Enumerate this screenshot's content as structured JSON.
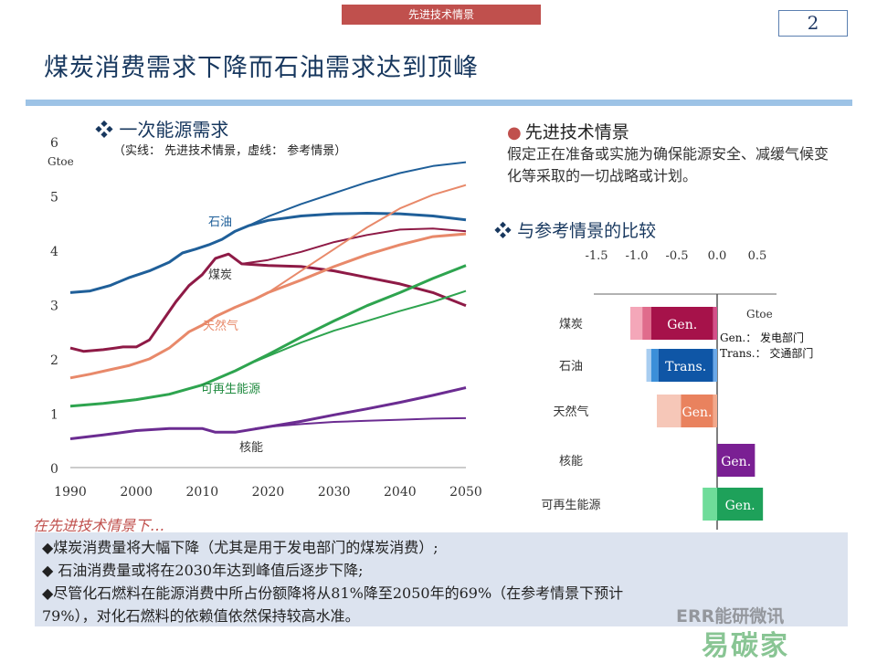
{
  "header": {
    "tag": "先进技术情景",
    "page_number": "2"
  },
  "title": "煤炭消费需求下降而石油需求达到顶峰",
  "left_panel": {
    "heading": "一次能源需求",
    "subtitle": "（实线： 先进技术情景，虚线： 参考情景）"
  },
  "right_panel": {
    "heading": "先进技术情景",
    "description": "假定正在准备或实施为确保能源安全、减缓气候变化等采取的一切战略或计划。",
    "comparison_heading": "与参考情景的比较",
    "legend_gen": "Gen.：  发电部门",
    "legend_trans": "Trans.：  交通部门"
  },
  "footer": {
    "lead": "在先进技术情景下…",
    "bullets": [
      "◆煤炭消费量将大幅下降（尤其是用于发电部门的煤炭消费）;",
      "◆ 石油消费量或将在2030年达到峰值后逐步下降;",
      "◆尽管化石燃料在能源消费中所占份额降将从81%降至2050年的69%（在参考情景下预计",
      "   79%），对化石燃料的依赖值依然保持较高水准。"
    ]
  },
  "watermark": {
    "line1": "ERR能研微讯",
    "line2": "易碳家"
  },
  "colors": {
    "oil": "#1f5f99",
    "coal": "#8e1a46",
    "gas": "#e8896a",
    "renew": "#2ea44f",
    "nuclear": "#6b2c91",
    "title": "#17375e",
    "accent": "#c0504d"
  },
  "chart_data": [
    {
      "type": "line",
      "ylabel": "Gtoe",
      "ylim": [
        0,
        6
      ],
      "xlim": [
        1990,
        2050
      ],
      "x_ticks": [
        1990,
        2000,
        2010,
        2020,
        2030,
        2040,
        2050
      ],
      "y_ticks": [
        0,
        1,
        2,
        3,
        4,
        5,
        6
      ],
      "series": [
        {
          "name": "石油",
          "style": "solid",
          "color": "#1f5f99",
          "points": [
            [
              1990,
              3.22
            ],
            [
              1993,
              3.25
            ],
            [
              1996,
              3.35
            ],
            [
              1999,
              3.5
            ],
            [
              2002,
              3.62
            ],
            [
              2005,
              3.78
            ],
            [
              2007,
              3.95
            ],
            [
              2009,
              4.02
            ],
            [
              2011,
              4.1
            ],
            [
              2013,
              4.2
            ],
            [
              2015,
              4.35
            ],
            [
              2017,
              4.45
            ],
            [
              2020,
              4.55
            ],
            [
              2025,
              4.63
            ],
            [
              2030,
              4.67
            ],
            [
              2035,
              4.68
            ],
            [
              2040,
              4.67
            ],
            [
              2045,
              4.63
            ],
            [
              2050,
              4.56
            ]
          ]
        },
        {
          "name": "石油",
          "style": "thin",
          "color": "#1f5f99",
          "points": [
            [
              2017,
              4.45
            ],
            [
              2020,
              4.62
            ],
            [
              2025,
              4.85
            ],
            [
              2030,
              5.05
            ],
            [
              2035,
              5.25
            ],
            [
              2040,
              5.42
            ],
            [
              2045,
              5.55
            ],
            [
              2050,
              5.62
            ]
          ]
        },
        {
          "name": "煤炭",
          "style": "solid",
          "color": "#8e1a46",
          "points": [
            [
              1990,
              2.2
            ],
            [
              1992,
              2.14
            ],
            [
              1995,
              2.17
            ],
            [
              1998,
              2.22
            ],
            [
              2000,
              2.22
            ],
            [
              2002,
              2.35
            ],
            [
              2004,
              2.7
            ],
            [
              2006,
              3.05
            ],
            [
              2008,
              3.35
            ],
            [
              2010,
              3.55
            ],
            [
              2012,
              3.85
            ],
            [
              2014,
              3.93
            ],
            [
              2016,
              3.75
            ],
            [
              2020,
              3.72
            ],
            [
              2025,
              3.7
            ],
            [
              2030,
              3.62
            ],
            [
              2035,
              3.5
            ],
            [
              2040,
              3.38
            ],
            [
              2045,
              3.22
            ],
            [
              2050,
              2.98
            ]
          ]
        },
        {
          "name": "煤炭",
          "style": "thin",
          "color": "#8e1a46",
          "points": [
            [
              2016,
              3.75
            ],
            [
              2020,
              3.82
            ],
            [
              2025,
              3.97
            ],
            [
              2030,
              4.15
            ],
            [
              2035,
              4.28
            ],
            [
              2040,
              4.38
            ],
            [
              2045,
              4.4
            ],
            [
              2050,
              4.35
            ]
          ]
        },
        {
          "name": "天然气",
          "style": "solid",
          "color": "#e8896a",
          "points": [
            [
              1990,
              1.65
            ],
            [
              1993,
              1.72
            ],
            [
              1996,
              1.8
            ],
            [
              1999,
              1.88
            ],
            [
              2002,
              2.0
            ],
            [
              2005,
              2.2
            ],
            [
              2008,
              2.5
            ],
            [
              2010,
              2.62
            ],
            [
              2012,
              2.78
            ],
            [
              2015,
              2.95
            ],
            [
              2018,
              3.1
            ],
            [
              2020,
              3.22
            ],
            [
              2025,
              3.45
            ],
            [
              2030,
              3.7
            ],
            [
              2035,
              3.92
            ],
            [
              2040,
              4.1
            ],
            [
              2045,
              4.25
            ],
            [
              2050,
              4.3
            ]
          ]
        },
        {
          "name": "天然气",
          "style": "thin",
          "color": "#e8896a",
          "points": [
            [
              2018,
              3.1
            ],
            [
              2020,
              3.22
            ],
            [
              2025,
              3.62
            ],
            [
              2030,
              4.02
            ],
            [
              2035,
              4.42
            ],
            [
              2040,
              4.77
            ],
            [
              2045,
              5.02
            ],
            [
              2050,
              5.2
            ]
          ]
        },
        {
          "name": "可再生能源",
          "style": "solid",
          "color": "#2ea44f",
          "points": [
            [
              1990,
              1.13
            ],
            [
              1995,
              1.18
            ],
            [
              2000,
              1.25
            ],
            [
              2005,
              1.35
            ],
            [
              2010,
              1.52
            ],
            [
              2015,
              1.78
            ],
            [
              2020,
              2.08
            ],
            [
              2025,
              2.4
            ],
            [
              2030,
              2.7
            ],
            [
              2035,
              2.98
            ],
            [
              2040,
              3.22
            ],
            [
              2045,
              3.48
            ],
            [
              2050,
              3.72
            ]
          ]
        },
        {
          "name": "可再生能源",
          "style": "thin",
          "color": "#2ea44f",
          "points": [
            [
              2018,
              1.95
            ],
            [
              2020,
              2.05
            ],
            [
              2025,
              2.3
            ],
            [
              2030,
              2.52
            ],
            [
              2035,
              2.7
            ],
            [
              2040,
              2.88
            ],
            [
              2045,
              3.05
            ],
            [
              2050,
              3.25
            ]
          ]
        },
        {
          "name": "核能",
          "style": "solid",
          "color": "#6b2c91",
          "points": [
            [
              1990,
              0.53
            ],
            [
              1995,
              0.6
            ],
            [
              2000,
              0.68
            ],
            [
              2005,
              0.72
            ],
            [
              2010,
              0.72
            ],
            [
              2012,
              0.65
            ],
            [
              2015,
              0.65
            ],
            [
              2020,
              0.75
            ],
            [
              2025,
              0.85
            ],
            [
              2030,
              0.97
            ],
            [
              2035,
              1.08
            ],
            [
              2040,
              1.2
            ],
            [
              2045,
              1.33
            ],
            [
              2050,
              1.47
            ]
          ]
        },
        {
          "name": "核能",
          "style": "thin",
          "color": "#6b2c91",
          "points": [
            [
              2018,
              0.72
            ],
            [
              2020,
              0.75
            ],
            [
              2025,
              0.8
            ],
            [
              2030,
              0.84
            ],
            [
              2035,
              0.86
            ],
            [
              2040,
              0.88
            ],
            [
              2045,
              0.9
            ],
            [
              2050,
              0.91
            ]
          ]
        }
      ]
    },
    {
      "type": "bar",
      "orientation": "horizontal-stacked",
      "ylabel": "Gtoe",
      "xlim": [
        -1.5,
        0.5
      ],
      "x_ticks": [
        "-1.5",
        "-1.0",
        "-0.5",
        "0.0",
        "0.5"
      ],
      "categories": [
        "煤炭",
        "石油",
        "天然气",
        "核能",
        "可再生能源"
      ],
      "bars": [
        {
          "category": "煤炭",
          "segments": [
            {
              "from": -1.08,
              "to": -0.93,
              "color": "#f4a7b9"
            },
            {
              "from": -0.93,
              "to": -0.82,
              "color": "#e06c8c"
            },
            {
              "from": -0.82,
              "to": -0.05,
              "color": "#a6124a",
              "label": "Gen."
            },
            {
              "from": -0.05,
              "to": 0.0,
              "color": "#d4508a"
            }
          ]
        },
        {
          "category": "石油",
          "segments": [
            {
              "from": -0.88,
              "to": -0.82,
              "color": "#a8cdf0"
            },
            {
              "from": -0.82,
              "to": -0.73,
              "color": "#3b8fd9"
            },
            {
              "from": -0.73,
              "to": -0.05,
              "color": "#0f56a6",
              "label": "Trans."
            },
            {
              "from": -0.05,
              "to": 0.0,
              "color": "#6aa8e8"
            }
          ]
        },
        {
          "category": "天然气",
          "segments": [
            {
              "from": -0.75,
              "to": -0.45,
              "color": "#f6c7b8"
            },
            {
              "from": -0.45,
              "to": -0.05,
              "color": "#e9825e",
              "label": "Gen."
            },
            {
              "from": -0.05,
              "to": 0.0,
              "color": "#f2a98c"
            }
          ]
        },
        {
          "category": "核能",
          "segments": [
            {
              "from": 0.0,
              "to": 0.47,
              "color": "#7a1f93",
              "label": "Gen."
            }
          ]
        },
        {
          "category": "可再生能源",
          "segments": [
            {
              "from": -0.18,
              "to": 0.0,
              "color": "#6fdc9a"
            },
            {
              "from": 0.0,
              "to": 0.57,
              "color": "#1ea15a",
              "label": "Gen."
            }
          ]
        }
      ]
    }
  ]
}
